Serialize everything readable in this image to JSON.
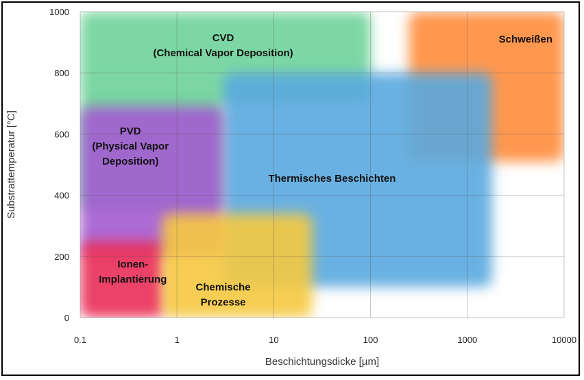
{
  "chart_data": {
    "type": "area",
    "xlabel": "Beschichtungsdicke [µm]",
    "ylabel": "Substrattemperatur [°C]",
    "xscale": "log",
    "xlim": [
      0.1,
      10000
    ],
    "ylim": [
      0,
      1000
    ],
    "xticks": [
      {
        "value": 0.1,
        "label": "0.1"
      },
      {
        "value": 1,
        "label": "1"
      },
      {
        "value": 10,
        "label": "10"
      },
      {
        "value": 100,
        "label": "100"
      },
      {
        "value": 1000,
        "label": "1000"
      },
      {
        "value": 10000,
        "label": "10000"
      }
    ],
    "yticks": [
      {
        "value": 0,
        "label": "0"
      },
      {
        "value": 200,
        "label": "200"
      },
      {
        "value": 400,
        "label": "400"
      },
      {
        "value": 600,
        "label": "600"
      },
      {
        "value": 800,
        "label": "800"
      },
      {
        "value": 1000,
        "label": "1000"
      }
    ],
    "grid": true,
    "regions": [
      {
        "id": "cvd",
        "label_lines": [
          "CVD",
          "(Chemical Vapor Deposition)"
        ],
        "label_at": [
          3,
          890
        ],
        "color": "#6fd39a",
        "rects": [
          [
            0.1,
            100,
            700,
            1000
          ],
          [
            0.1,
            3,
            350,
            720
          ]
        ]
      },
      {
        "id": "schweissen",
        "label_lines": [
          "Schweißen"
        ],
        "label_at": [
          4000,
          910
        ],
        "color": "#ff8c3a",
        "rects": [
          [
            250,
            10000,
            510,
            1000
          ]
        ]
      },
      {
        "id": "thermisches-beschichten",
        "label_lines": [
          "Thermisches Beschichten"
        ],
        "label_at": [
          40,
          455
        ],
        "color": "#5aa9df",
        "rects": [
          [
            3,
            1800,
            100,
            800
          ]
        ]
      },
      {
        "id": "pvd",
        "label_lines": [
          "PVD",
          "(Physical Vapor",
          "Deposition)"
        ],
        "label_at": [
          0.33,
          560
        ],
        "color": "#a45bd1",
        "rects": [
          [
            0.1,
            3,
            200,
            690
          ]
        ]
      },
      {
        "id": "ionen-implantierung",
        "label_lines": [
          "Ionen-",
          "Implantierung"
        ],
        "label_at": [
          0.35,
          150
        ],
        "color": "#ea2f58",
        "rects": [
          [
            0.1,
            0.75,
            0,
            250
          ]
        ]
      },
      {
        "id": "chemische-prozesse",
        "label_lines": [
          "Chemische",
          "Prozesse"
        ],
        "label_at": [
          3,
          75
        ],
        "color": "#f6c940",
        "rects": [
          [
            0.7,
            25,
            0,
            340
          ]
        ]
      }
    ]
  }
}
